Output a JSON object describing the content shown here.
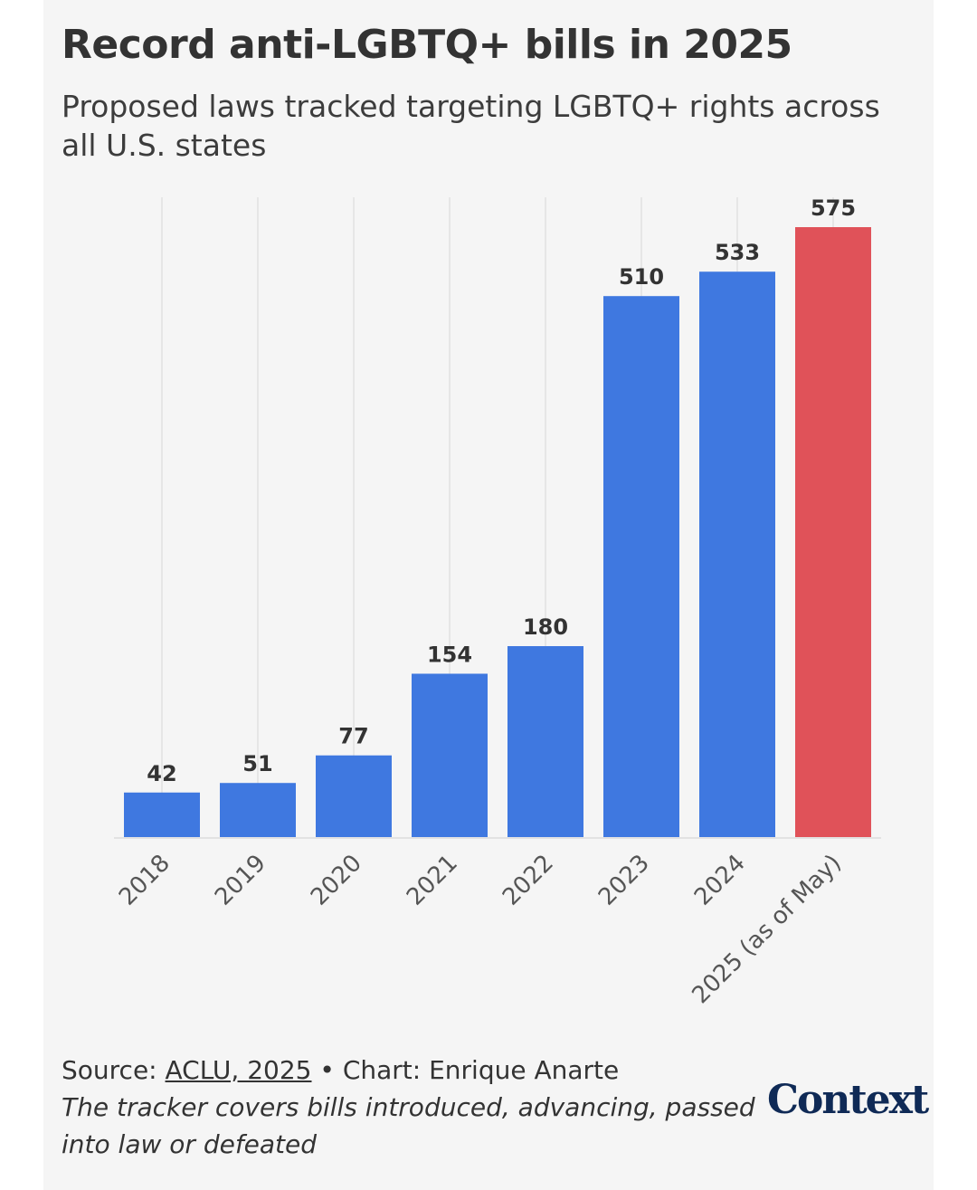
{
  "header": {
    "title": "Record anti-LGBTQ+ bills in 2025",
    "subtitle": "Proposed laws tracked targeting LGBTQ+ rights across all U.S. states"
  },
  "chart_data": {
    "type": "bar",
    "title": "Record anti-LGBTQ+ bills in 2025",
    "subtitle": "Proposed laws tracked targeting LGBTQ+ rights across all U.S. states",
    "xlabel": "",
    "ylabel": "",
    "categories": [
      "2018",
      "2019",
      "2020",
      "2021",
      "2022",
      "2023",
      "2024",
      "2025 (as of May)"
    ],
    "values": [
      42,
      51,
      77,
      154,
      180,
      510,
      533,
      575
    ],
    "highlight_index": 7,
    "ylim": [
      0,
      575
    ],
    "grid": "vertical",
    "data_labels": true
  },
  "colors": {
    "bar": "#3f78e0",
    "highlight": "#e05259",
    "grid": "#e6e6e6",
    "text": "#333333"
  },
  "footer": {
    "source_prefix": "Source: ",
    "source_link": "ACLU, 2025",
    "chart_credit": " • Chart: Enrique Anarte",
    "note": "The tracker covers bills introduced, advancing, passed into law or defeated"
  },
  "logo": {
    "text": "Context"
  }
}
